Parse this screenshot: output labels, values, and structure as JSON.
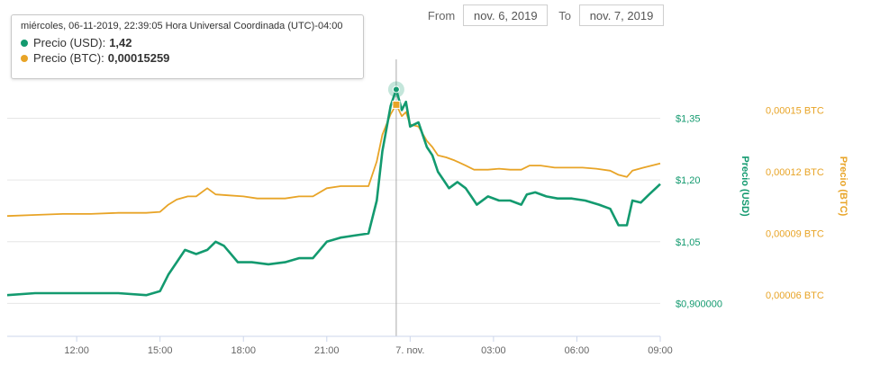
{
  "range": {
    "from_label": "From",
    "from_value": "nov. 6, 2019",
    "to_label": "To",
    "to_value": "nov. 7, 2019"
  },
  "tooltip": {
    "date": "miércoles, 06-11-2019, 22:39:05 Hora Universal Coordinada (UTC)-04:00",
    "usd_label": "Precio (USD):",
    "usd_value": "1,42",
    "btc_label": "Precio (BTC):",
    "btc_value": "0,00015259"
  },
  "colors": {
    "usd": "#139a6f",
    "btc": "#e8a427",
    "grid": "#e6e6e6",
    "axis_text": "#666666"
  },
  "chart_data": {
    "type": "line",
    "x_axis": {
      "start": 9.5,
      "end": 33.0,
      "ticks": [
        12,
        15,
        18,
        21,
        24,
        27,
        30,
        33
      ],
      "tick_labels": [
        "12:00",
        "15:00",
        "18:00",
        "21:00",
        "7. nov.",
        "03:00",
        "06:00",
        "09:00"
      ]
    },
    "y_usd": {
      "label": "Precio (USD)",
      "min": 0.82,
      "max": 1.55,
      "ticks": [
        0.9,
        1.05,
        1.2,
        1.35
      ],
      "tick_labels": [
        "$0,900000",
        "$1,05",
        "$1,20",
        "$1,35"
      ]
    },
    "y_btc": {
      "label": "Precio (BTC)",
      "min": 4e-05,
      "max": 0.000186,
      "ticks": [
        6e-05,
        9e-05,
        0.00012,
        0.00015
      ],
      "tick_labels": [
        "0,00006 BTC",
        "0,00009 BTC",
        "0,00012 BTC",
        "0,00015 BTC"
      ]
    },
    "series": [
      {
        "name": "Precio (USD)",
        "axis": "usd",
        "points": [
          [
            9.5,
            0.92
          ],
          [
            10.5,
            0.925
          ],
          [
            11.5,
            0.925
          ],
          [
            12.5,
            0.925
          ],
          [
            13.5,
            0.925
          ],
          [
            14.5,
            0.92
          ],
          [
            15.0,
            0.93
          ],
          [
            15.3,
            0.97
          ],
          [
            15.6,
            1.0
          ],
          [
            15.9,
            1.03
          ],
          [
            16.3,
            1.02
          ],
          [
            16.7,
            1.03
          ],
          [
            17.0,
            1.05
          ],
          [
            17.3,
            1.04
          ],
          [
            17.8,
            1.0
          ],
          [
            18.3,
            1.0
          ],
          [
            18.9,
            0.995
          ],
          [
            19.5,
            1.0
          ],
          [
            20.0,
            1.01
          ],
          [
            20.5,
            1.01
          ],
          [
            21.0,
            1.05
          ],
          [
            21.5,
            1.06
          ],
          [
            22.0,
            1.065
          ],
          [
            22.5,
            1.07
          ],
          [
            22.8,
            1.15
          ],
          [
            23.0,
            1.27
          ],
          [
            23.3,
            1.38
          ],
          [
            23.5,
            1.42
          ],
          [
            23.7,
            1.37
          ],
          [
            23.85,
            1.39
          ],
          [
            24.0,
            1.33
          ],
          [
            24.3,
            1.34
          ],
          [
            24.6,
            1.28
          ],
          [
            24.8,
            1.26
          ],
          [
            25.0,
            1.22
          ],
          [
            25.2,
            1.2
          ],
          [
            25.4,
            1.18
          ],
          [
            25.7,
            1.195
          ],
          [
            26.0,
            1.18
          ],
          [
            26.2,
            1.16
          ],
          [
            26.4,
            1.14
          ],
          [
            26.8,
            1.16
          ],
          [
            27.2,
            1.15
          ],
          [
            27.6,
            1.15
          ],
          [
            28.0,
            1.14
          ],
          [
            28.2,
            1.165
          ],
          [
            28.5,
            1.17
          ],
          [
            28.9,
            1.16
          ],
          [
            29.3,
            1.155
          ],
          [
            29.8,
            1.155
          ],
          [
            30.3,
            1.15
          ],
          [
            30.8,
            1.14
          ],
          [
            31.2,
            1.13
          ],
          [
            31.5,
            1.09
          ],
          [
            31.8,
            1.09
          ],
          [
            32.0,
            1.15
          ],
          [
            32.3,
            1.145
          ],
          [
            32.6,
            1.165
          ],
          [
            33.0,
            1.19
          ]
        ]
      },
      {
        "name": "Precio (BTC)",
        "axis": "btc",
        "points": [
          [
            9.5,
            9.85e-05
          ],
          [
            10.5,
            9.9e-05
          ],
          [
            11.5,
            9.95e-05
          ],
          [
            12.5,
            9.95e-05
          ],
          [
            13.5,
            0.0001
          ],
          [
            14.5,
            0.0001
          ],
          [
            15.0,
            0.0001005
          ],
          [
            15.3,
            0.000104
          ],
          [
            15.6,
            0.0001065
          ],
          [
            16.0,
            0.000108
          ],
          [
            16.3,
            0.000108
          ],
          [
            16.7,
            0.000112
          ],
          [
            17.0,
            0.000109
          ],
          [
            17.5,
            0.0001085
          ],
          [
            18.0,
            0.000108
          ],
          [
            18.5,
            0.000107
          ],
          [
            19.0,
            0.000107
          ],
          [
            19.5,
            0.000107
          ],
          [
            20.0,
            0.000108
          ],
          [
            20.5,
            0.000108
          ],
          [
            21.0,
            0.000112
          ],
          [
            21.5,
            0.000113
          ],
          [
            22.0,
            0.000113
          ],
          [
            22.5,
            0.000113
          ],
          [
            22.8,
            0.000125
          ],
          [
            23.0,
            0.000138
          ],
          [
            23.3,
            0.000148
          ],
          [
            23.5,
            0.00015259
          ],
          [
            23.7,
            0.000147
          ],
          [
            23.85,
            0.000149
          ],
          [
            24.0,
            0.000143
          ],
          [
            24.3,
            0.000142
          ],
          [
            24.6,
            0.000135
          ],
          [
            24.8,
            0.000132
          ],
          [
            25.0,
            0.000128
          ],
          [
            25.3,
            0.000127
          ],
          [
            25.6,
            0.0001255
          ],
          [
            26.0,
            0.000123
          ],
          [
            26.3,
            0.000121
          ],
          [
            26.8,
            0.000121
          ],
          [
            27.2,
            0.0001215
          ],
          [
            27.6,
            0.000121
          ],
          [
            28.0,
            0.000121
          ],
          [
            28.3,
            0.000123
          ],
          [
            28.7,
            0.000123
          ],
          [
            29.2,
            0.000122
          ],
          [
            29.7,
            0.000122
          ],
          [
            30.2,
            0.000122
          ],
          [
            30.7,
            0.0001215
          ],
          [
            31.2,
            0.0001205
          ],
          [
            31.5,
            0.0001185
          ],
          [
            31.8,
            0.0001175
          ],
          [
            32.0,
            0.0001205
          ],
          [
            32.4,
            0.000122
          ],
          [
            33.0,
            0.000124
          ]
        ]
      }
    ],
    "highlight_x": 23.5,
    "grid": true,
    "legend": "none"
  }
}
